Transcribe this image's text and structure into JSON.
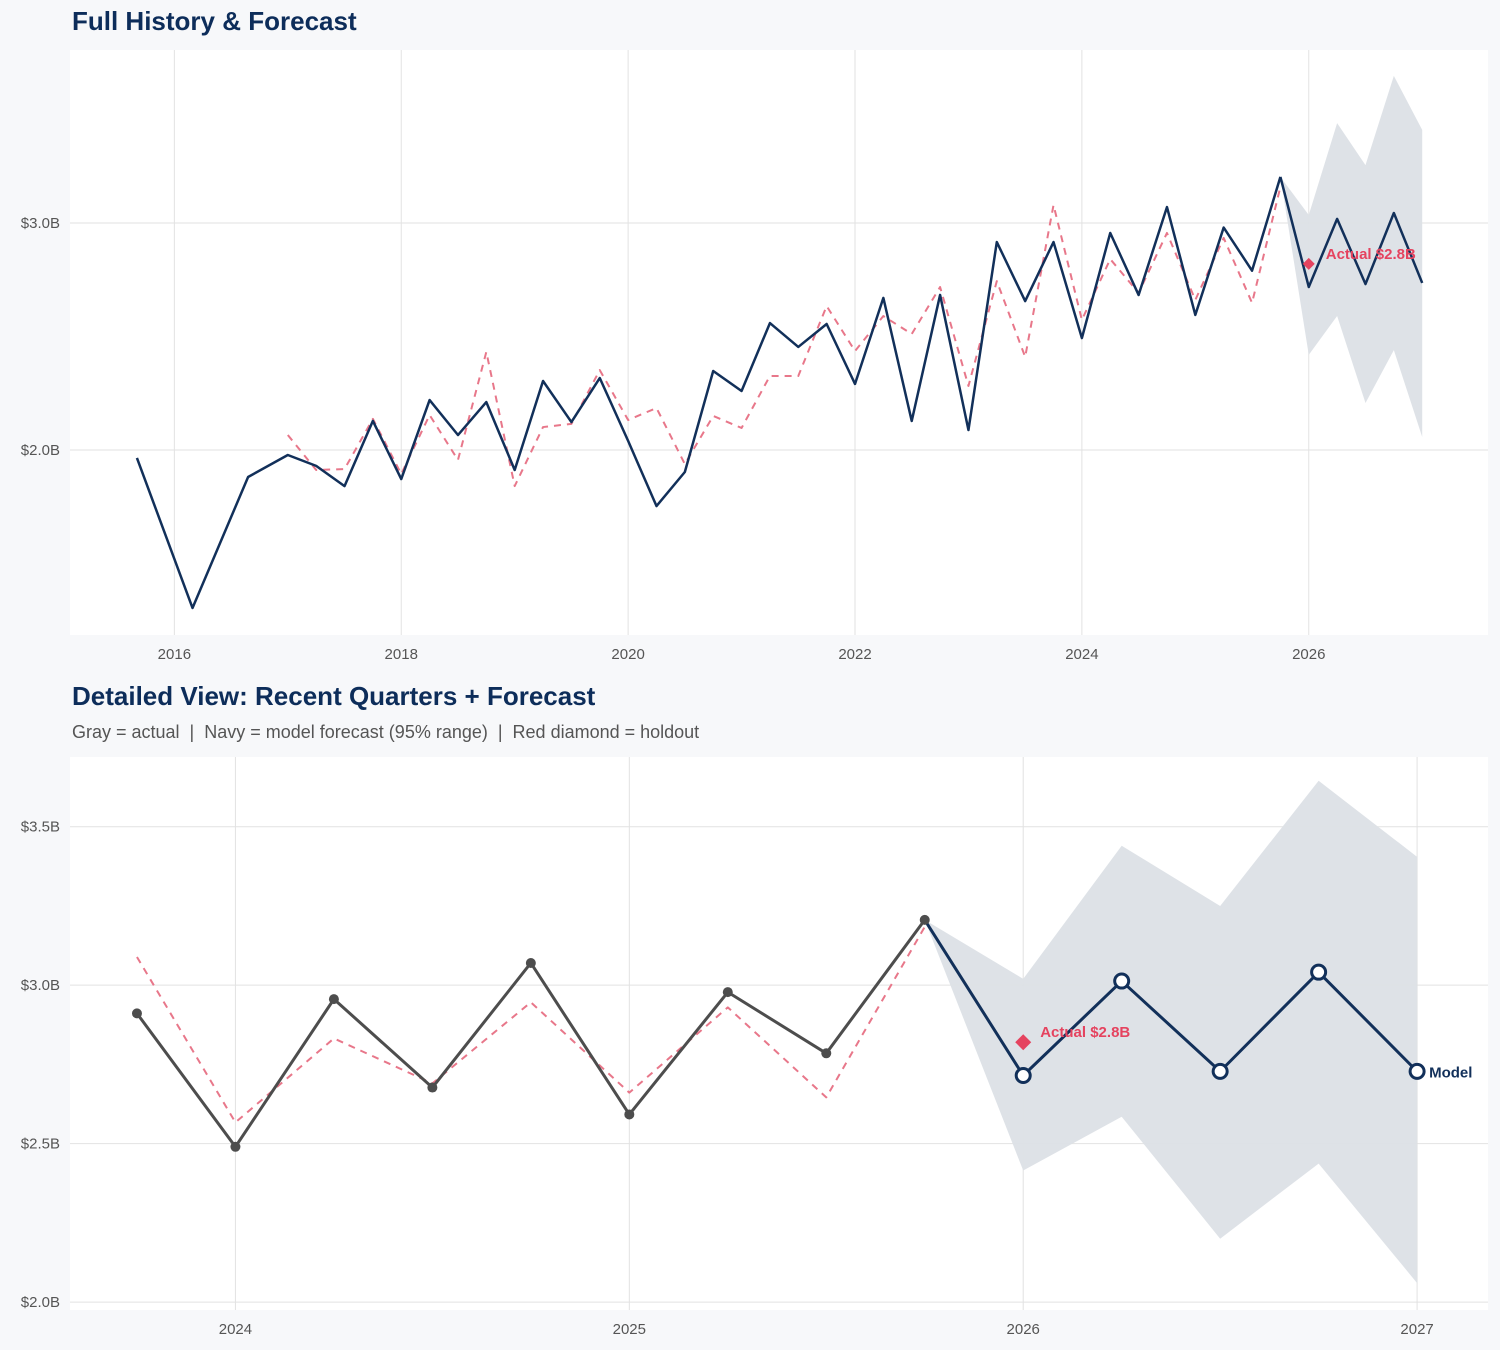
{
  "colors": {
    "navy": "#12305a",
    "actual_gray": "#4d4d4d",
    "fitted_red": "#e8778a",
    "holdout_red": "#e5435f",
    "band": "#dce0e6",
    "title": "#0d2d5a"
  },
  "chart_data": [
    {
      "type": "line",
      "title": "Full History & Forecast",
      "xlim": [
        2015.08,
        2027.58
      ],
      "ylim": [
        1.185,
        3.762
      ],
      "grid": true,
      "x_ticks": [
        {
          "value": 2016,
          "label": "2016"
        },
        {
          "value": 2018,
          "label": "2018"
        },
        {
          "value": 2020,
          "label": "2020"
        },
        {
          "value": 2022,
          "label": "2022"
        },
        {
          "value": 2024,
          "label": "2024"
        },
        {
          "value": 2026,
          "label": "2026"
        }
      ],
      "y_ticks": [
        {
          "value": 2.0,
          "label": "$2.0B"
        },
        {
          "value": 3.0,
          "label": "$3.0B"
        }
      ],
      "actual": {
        "x": [
          2015.67,
          2016.16,
          2016.65,
          2017.0,
          2017.25,
          2017.5,
          2017.75,
          2018.0,
          2018.25,
          2018.5,
          2018.75,
          2019.0,
          2019.25,
          2019.5,
          2019.75,
          2020.0,
          2020.25,
          2020.5,
          2020.75,
          2021.0,
          2021.25,
          2021.5,
          2021.75,
          2022.0,
          2022.25,
          2022.5,
          2022.75,
          2023.0,
          2023.25,
          2023.5,
          2023.75,
          2024.0,
          2024.25,
          2024.5,
          2024.75,
          2025.0,
          2025.25,
          2025.5,
          2025.75
        ],
        "y": [
          1.965,
          1.304,
          1.881,
          1.978,
          1.93,
          1.841,
          2.128,
          1.872,
          2.22,
          2.066,
          2.211,
          1.912,
          2.304,
          2.123,
          2.317,
          2.04,
          1.753,
          1.903,
          2.348,
          2.26,
          2.559,
          2.454,
          2.555,
          2.291,
          2.67,
          2.128,
          2.683,
          2.088,
          2.916,
          2.656,
          2.916,
          2.493,
          2.956,
          2.683,
          3.07,
          2.595,
          2.98,
          2.79,
          3.203
        ]
      },
      "fitted": {
        "x": [
          2017.0,
          2017.25,
          2017.5,
          2017.75,
          2018.0,
          2018.25,
          2018.5,
          2018.75,
          2019.0,
          2019.25,
          2019.5,
          2019.75,
          2020.0,
          2020.25,
          2020.5,
          2020.75,
          2021.0,
          2021.25,
          2021.5,
          2021.75,
          2022.0,
          2022.25,
          2022.5,
          2022.75,
          2023.0,
          2023.25,
          2023.5,
          2023.75,
          2024.0,
          2024.25,
          2024.5,
          2024.75,
          2025.0,
          2025.25,
          2025.5,
          2025.75
        ],
        "y": [
          2.066,
          1.912,
          1.916,
          2.137,
          1.894,
          2.154,
          1.956,
          2.432,
          1.841,
          2.101,
          2.115,
          2.352,
          2.132,
          2.185,
          1.938,
          2.15,
          2.097,
          2.326,
          2.326,
          2.634,
          2.436,
          2.59,
          2.511,
          2.718,
          2.282,
          2.744,
          2.41,
          3.079,
          2.573,
          2.841,
          2.692,
          2.956,
          2.661,
          2.934,
          2.648,
          3.159
        ]
      },
      "forecast": {
        "x": [
          2025.75,
          2026.0,
          2026.25,
          2026.5,
          2026.75,
          2027.0
        ],
        "y": [
          3.203,
          2.718,
          3.018,
          2.731,
          3.044,
          2.736
        ],
        "markers": false
      },
      "band": {
        "x": [
          2025.75,
          2026.0,
          2026.25,
          2026.5,
          2026.75,
          2027.0
        ],
        "lower": [
          3.203,
          2.419,
          2.59,
          2.207,
          2.44,
          2.057
        ],
        "upper": [
          3.203,
          3.035,
          3.44,
          3.255,
          3.648,
          3.41
        ]
      },
      "holdout": {
        "x": 2026.0,
        "y": 2.82,
        "label": "Actual $2.8B"
      },
      "end_label": ""
    },
    {
      "type": "line",
      "title": "Detailed View: Recent Quarters + Forecast",
      "subtitle": "Gray = actual  |  Navy = model forecast (95% range)  |  Red diamond = holdout",
      "xlim": [
        2023.58,
        2027.18
      ],
      "ylim": [
        1.975,
        3.72
      ],
      "grid": true,
      "x_ticks": [
        {
          "value": 2024,
          "label": "2024"
        },
        {
          "value": 2025,
          "label": "2025"
        },
        {
          "value": 2026,
          "label": "2026"
        },
        {
          "value": 2027,
          "label": "2027"
        }
      ],
      "y_ticks": [
        {
          "value": 2.0,
          "label": "$2.0B"
        },
        {
          "value": 2.5,
          "label": "$2.5B"
        },
        {
          "value": 3.0,
          "label": "$3.0B"
        },
        {
          "value": 3.5,
          "label": "$3.5B"
        }
      ],
      "actual": {
        "x": [
          2023.75,
          2024.0,
          2024.25,
          2024.5,
          2024.75,
          2025.0,
          2025.25,
          2025.5,
          2025.75
        ],
        "y": [
          2.911,
          2.49,
          2.956,
          2.677,
          3.07,
          2.592,
          2.978,
          2.785,
          3.206
        ],
        "markers": true
      },
      "fitted": {
        "x": [
          2023.75,
          2024.0,
          2024.25,
          2024.5,
          2024.75,
          2025.0,
          2025.25,
          2025.5,
          2025.75
        ],
        "y": [
          3.089,
          2.567,
          2.832,
          2.69,
          2.946,
          2.661,
          2.93,
          2.646,
          3.184
        ]
      },
      "forecast": {
        "x": [
          2025.75,
          2026.0,
          2026.25,
          2026.5,
          2026.75,
          2027.0
        ],
        "y": [
          3.206,
          2.715,
          3.013,
          2.728,
          3.041,
          2.728
        ],
        "markers": true
      },
      "band": {
        "x": [
          2025.75,
          2026.0,
          2026.25,
          2026.5,
          2026.75,
          2027.0
        ],
        "lower": [
          3.206,
          2.415,
          2.585,
          2.2,
          2.437,
          2.06
        ],
        "upper": [
          3.206,
          3.02,
          3.44,
          3.25,
          3.645,
          3.405
        ]
      },
      "holdout": {
        "x": 2026.0,
        "y": 2.82,
        "label": "Actual $2.8B"
      },
      "end_label": "Model"
    }
  ]
}
